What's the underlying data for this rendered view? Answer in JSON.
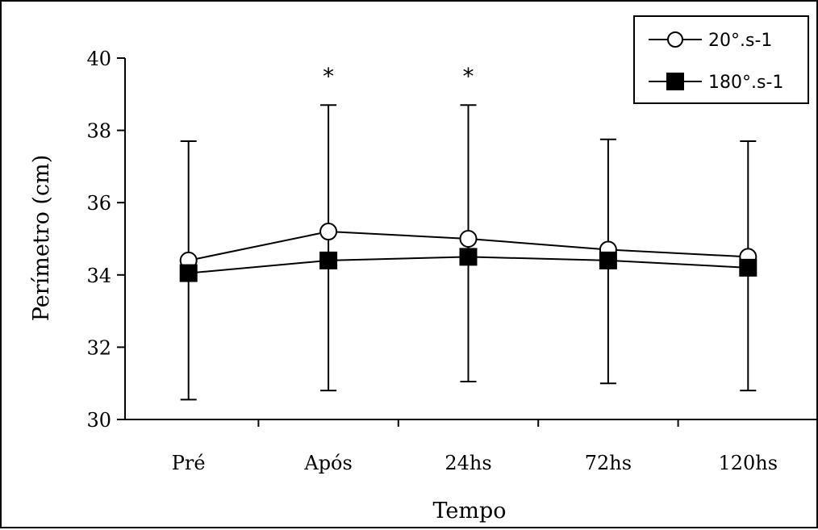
{
  "chart_data": {
    "type": "line",
    "title": "",
    "xlabel": "Tempo",
    "ylabel": "Perímetro (cm)",
    "categories": [
      "Pré",
      "Após",
      "24hs",
      "72hs",
      "120hs"
    ],
    "ylim": [
      30,
      40
    ],
    "yticks": [
      30,
      32,
      34,
      36,
      38,
      40
    ],
    "ytick_labels": [
      "30",
      "32",
      "34",
      "36",
      "38",
      "40"
    ],
    "grid": false,
    "legend_position": "top-right",
    "series": [
      {
        "name": "20°.s-1",
        "marker": "circle-open",
        "color": "#000000",
        "values": [
          34.4,
          35.2,
          35.0,
          34.7,
          34.5
        ],
        "error_high": [
          37.7,
          38.7,
          38.7,
          37.75,
          37.7
        ],
        "error_low": [
          30.55,
          30.8,
          31.05,
          31.0,
          30.8
        ]
      },
      {
        "name": "180°.s-1",
        "marker": "square-filled",
        "color": "#000000",
        "values": [
          34.05,
          34.4,
          34.5,
          34.4,
          34.2
        ]
      }
    ],
    "annotations": [
      {
        "text": "*",
        "category": "Após",
        "y": 39.6
      },
      {
        "text": "*",
        "category": "24hs",
        "y": 39.6
      }
    ]
  }
}
